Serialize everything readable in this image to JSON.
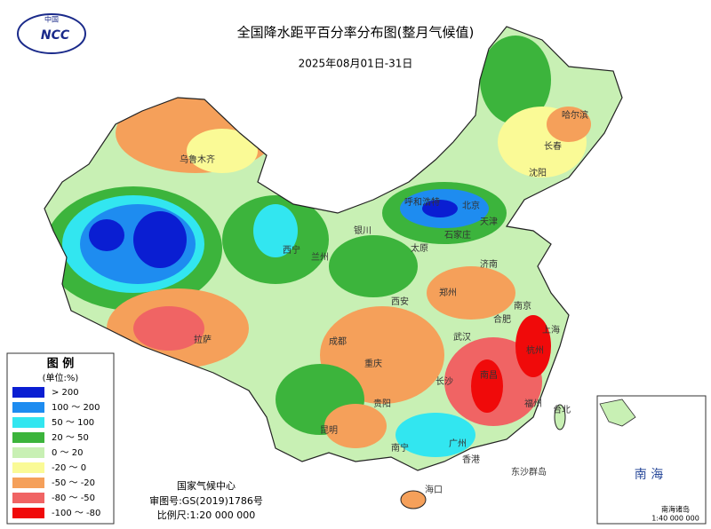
{
  "header": {
    "logo_text": "中国",
    "logo_abbr": "NCC",
    "title": "全国降水距平百分率分布图(整月气候值)",
    "date": "2025年08月01日-31日"
  },
  "legend": {
    "title": "图 例",
    "unit": "(单位:%)",
    "items": [
      {
        "label": "> 200",
        "color": "#0a1ed2"
      },
      {
        "label": "100 ～ 200",
        "color": "#1e8cf0"
      },
      {
        "label": "50 ～ 100",
        "color": "#32e6f0"
      },
      {
        "label": "20 ～ 50",
        "color": "#3cb43c"
      },
      {
        "label": "0 ～ 20",
        "color": "#c8f0b4"
      },
      {
        "label": "-20 ～ 0",
        "color": "#fafa96"
      },
      {
        "label": "-50 ～ -20",
        "color": "#f5a05a"
      },
      {
        "label": "-80 ～ -50",
        "color": "#f06464"
      },
      {
        "label": "-100 ～ -80",
        "color": "#f00a0a"
      }
    ]
  },
  "footer": {
    "org": "国家气候中心",
    "approval": "审图号:GS(2019)1786号",
    "scale": "比例尺:1:20 000 000"
  },
  "inset": {
    "sea": "南 海",
    "islands": "南海诸岛",
    "scale": "1:40 000 000"
  },
  "places": [
    {
      "name": "乌鲁木齐"
    },
    {
      "name": "拉萨"
    },
    {
      "name": "西宁"
    },
    {
      "name": "兰州"
    },
    {
      "name": "银川"
    },
    {
      "name": "呼和浩特"
    },
    {
      "name": "北京"
    },
    {
      "name": "天津"
    },
    {
      "name": "石家庄"
    },
    {
      "name": "太原"
    },
    {
      "name": "济南"
    },
    {
      "name": "郑州"
    },
    {
      "name": "西安"
    },
    {
      "name": "成都"
    },
    {
      "name": "重庆"
    },
    {
      "name": "武汉"
    },
    {
      "name": "合肥"
    },
    {
      "name": "南京"
    },
    {
      "name": "上海"
    },
    {
      "name": "杭州"
    },
    {
      "name": "南昌"
    },
    {
      "name": "长沙"
    },
    {
      "name": "贵阳"
    },
    {
      "name": "昆明"
    },
    {
      "name": "南宁"
    },
    {
      "name": "广州"
    },
    {
      "name": "福州"
    },
    {
      "name": "台北"
    },
    {
      "name": "香港"
    },
    {
      "name": "海口"
    },
    {
      "name": "沈阳"
    },
    {
      "name": "长春"
    },
    {
      "name": "哈尔滨"
    },
    {
      "name": "东沙群岛"
    }
  ]
}
